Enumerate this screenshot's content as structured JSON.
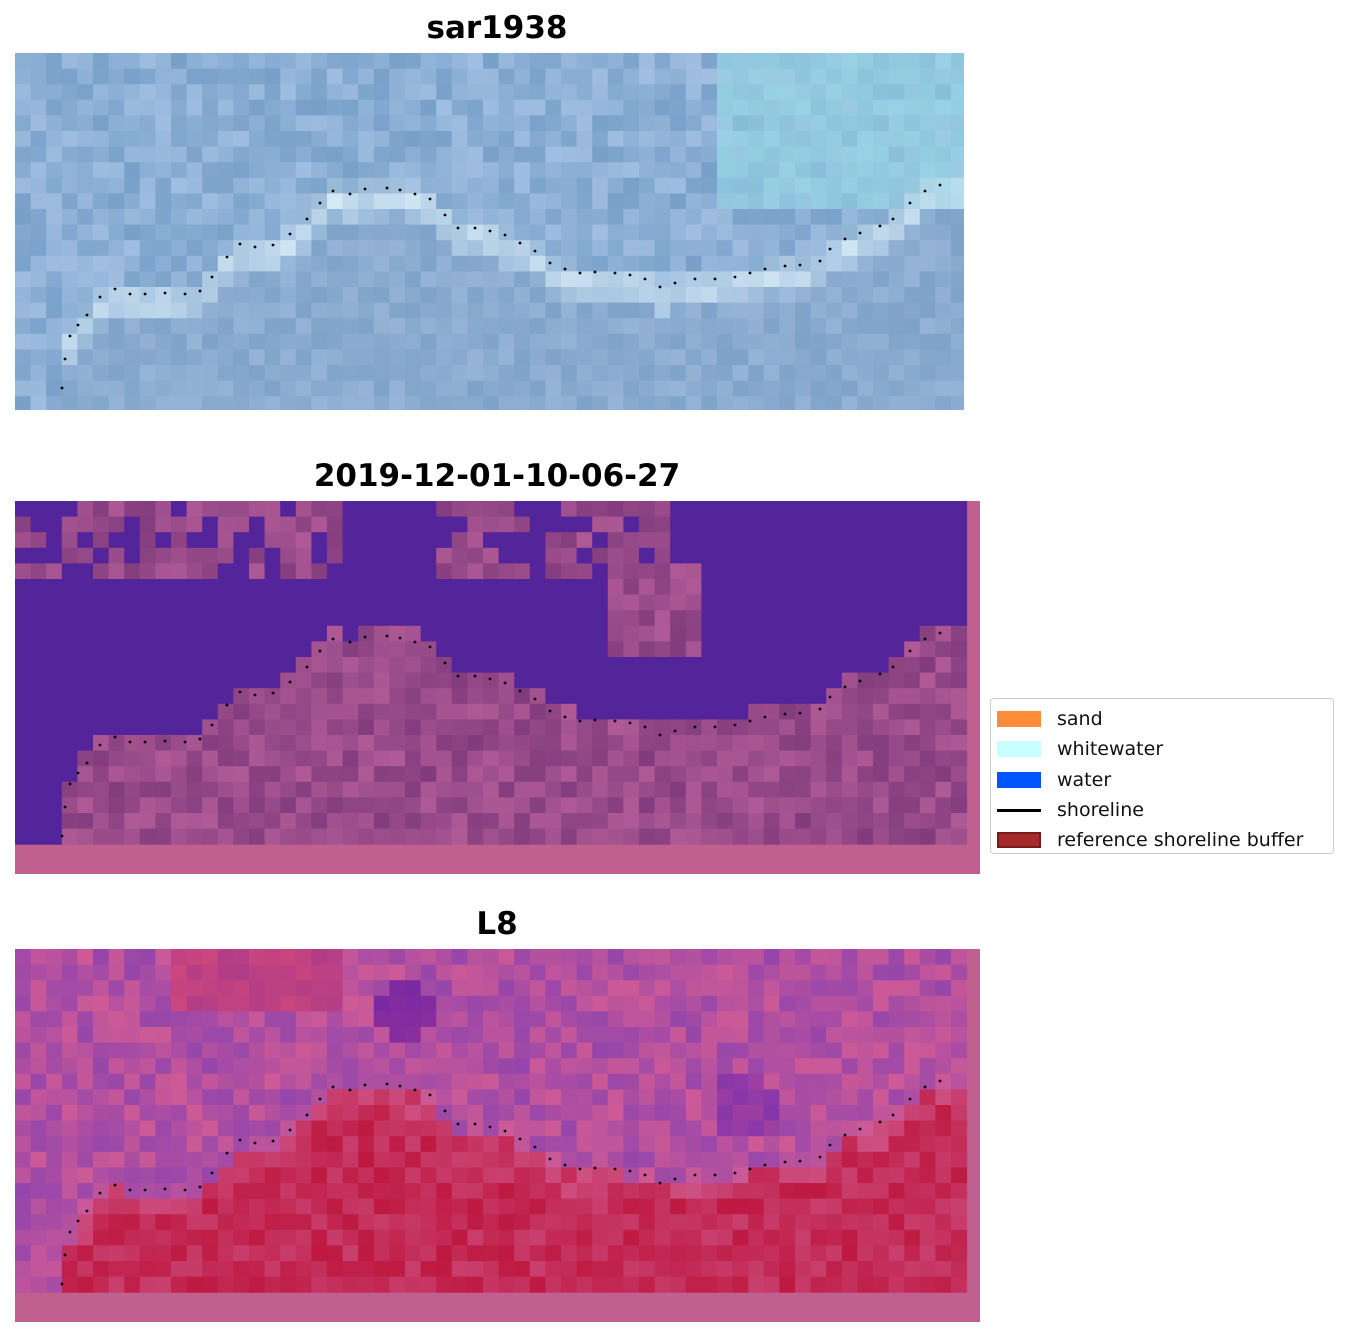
{
  "panels": [
    {
      "title": "sar1938",
      "style": "rgb"
    },
    {
      "title": "2019-12-01-10-06-27",
      "style": "classified"
    },
    {
      "title": "L8",
      "style": "index"
    }
  ],
  "legend": {
    "items": [
      {
        "label": "sand",
        "color": "#ff8c3a",
        "kind": "patch"
      },
      {
        "label": "whitewater",
        "color": "#c8ffff",
        "kind": "patch"
      },
      {
        "label": "water",
        "color": "#0055ff",
        "kind": "patch"
      },
      {
        "label": "shoreline",
        "color": "#000000",
        "kind": "line"
      },
      {
        "label": "reference shoreline buffer",
        "color": "#a52a2a",
        "kind": "patch"
      }
    ]
  },
  "colors": {
    "water_class": "#54249a",
    "land_class": "#8a4686",
    "buffer_border": "#c0608f",
    "index_high": "#c0103a",
    "index_low": "#6a0aa8"
  }
}
